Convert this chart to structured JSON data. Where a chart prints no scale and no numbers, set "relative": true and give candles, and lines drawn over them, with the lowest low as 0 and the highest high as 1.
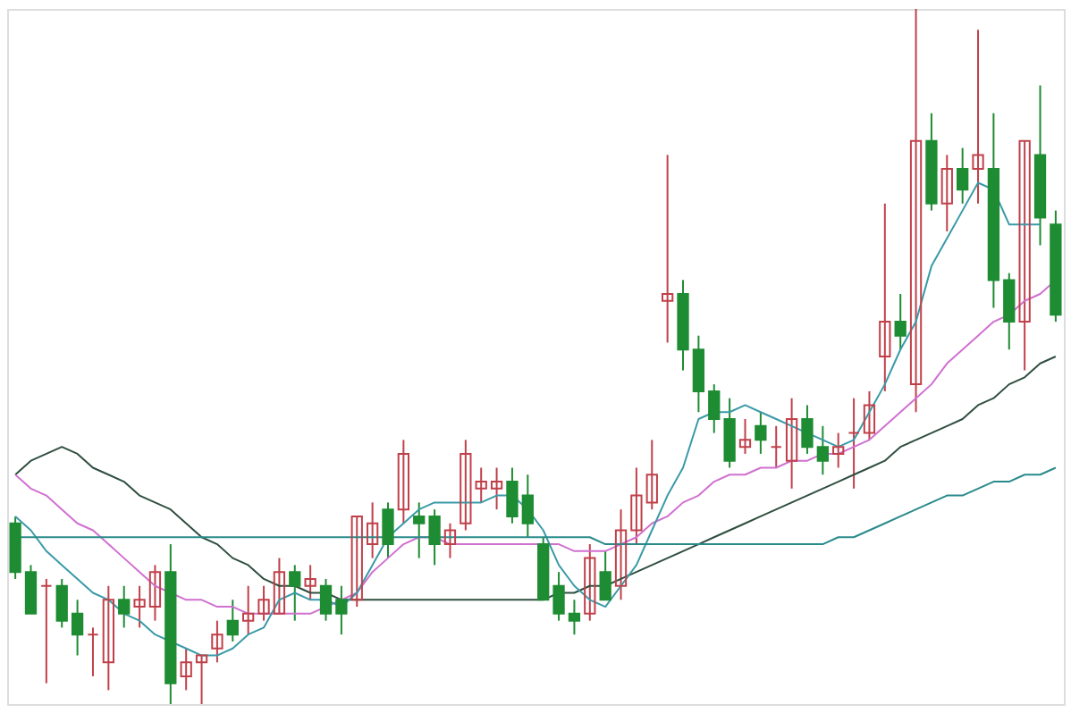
{
  "chart_data": {
    "type": "candlestick",
    "relative": true,
    "categories": [
      null,
      null,
      null,
      null,
      null,
      null,
      null,
      null,
      null,
      null,
      null,
      null,
      null,
      null,
      null,
      null,
      null,
      null,
      null,
      null,
      null,
      null,
      null,
      null,
      null,
      null,
      null,
      null,
      null,
      null,
      null,
      null,
      null,
      null,
      null,
      null,
      null,
      null,
      null,
      null,
      null,
      null,
      null,
      null,
      null,
      null,
      null,
      null,
      null,
      null,
      null,
      null,
      null,
      null,
      null,
      null,
      null,
      null,
      null,
      null,
      null,
      null,
      null,
      null,
      null,
      null,
      null,
      null
    ],
    "ohlc": [
      [
        0.26,
        0.27,
        0.18,
        0.19
      ],
      [
        0.19,
        0.2,
        0.13,
        0.13
      ],
      [
        0.17,
        0.18,
        0.03,
        0.17
      ],
      [
        0.17,
        0.18,
        0.11,
        0.12
      ],
      [
        0.13,
        0.15,
        0.07,
        0.1
      ],
      [
        0.1,
        0.11,
        0.04,
        0.1
      ],
      [
        0.06,
        0.17,
        0.02,
        0.15
      ],
      [
        0.15,
        0.17,
        0.11,
        0.13
      ],
      [
        0.14,
        0.17,
        0.11,
        0.15
      ],
      [
        0.14,
        0.2,
        0.12,
        0.19
      ],
      [
        0.19,
        0.23,
        0,
        0.03
      ],
      [
        0.04,
        0.08,
        0.02,
        0.06
      ],
      [
        0.06,
        0.07,
        0,
        0.07
      ],
      [
        0.08,
        0.12,
        0.06,
        0.1
      ],
      [
        0.12,
        0.15,
        0.09,
        0.1
      ],
      [
        0.12,
        0.17,
        0.1,
        0.13
      ],
      [
        0.13,
        0.17,
        0.12,
        0.15
      ],
      [
        0.13,
        0.21,
        0.13,
        0.19
      ],
      [
        0.19,
        0.2,
        0.12,
        0.17
      ],
      [
        0.17,
        0.2,
        0.15,
        0.18
      ],
      [
        0.17,
        0.18,
        0.12,
        0.13
      ],
      [
        0.15,
        0.17,
        0.1,
        0.13
      ],
      [
        0.15,
        0.27,
        0.14,
        0.27
      ],
      [
        0.23,
        0.29,
        0.21,
        0.26
      ],
      [
        0.28,
        0.29,
        0.21,
        0.23
      ],
      [
        0.28,
        0.38,
        0.26,
        0.36
      ],
      [
        0.27,
        0.29,
        0.21,
        0.26
      ],
      [
        0.27,
        0.28,
        0.2,
        0.23
      ],
      [
        0.23,
        0.26,
        0.21,
        0.25
      ],
      [
        0.26,
        0.38,
        0.25,
        0.36
      ],
      [
        0.31,
        0.34,
        0.29,
        0.32
      ],
      [
        0.31,
        0.34,
        0.28,
        0.32
      ],
      [
        0.32,
        0.34,
        0.26,
        0.27
      ],
      [
        0.3,
        0.33,
        0.24,
        0.26
      ],
      [
        0.23,
        0.24,
        0.15,
        0.15
      ],
      [
        0.17,
        0.19,
        0.12,
        0.13
      ],
      [
        0.13,
        0.15,
        0.1,
        0.12
      ],
      [
        0.13,
        0.23,
        0.12,
        0.21
      ],
      [
        0.19,
        0.22,
        0.15,
        0.15
      ],
      [
        0.17,
        0.28,
        0.15,
        0.25
      ],
      [
        0.25,
        0.34,
        0.23,
        0.3
      ],
      [
        0.29,
        0.38,
        0.28,
        0.33
      ],
      [
        0.58,
        0.79,
        0.52,
        0.59
      ],
      [
        0.59,
        0.61,
        0.48,
        0.51
      ],
      [
        0.51,
        0.53,
        0.42,
        0.45
      ],
      [
        0.45,
        0.46,
        0.39,
        0.41
      ],
      [
        0.41,
        0.44,
        0.34,
        0.35
      ],
      [
        0.37,
        0.41,
        0.36,
        0.38
      ],
      [
        0.4,
        0.42,
        0.36,
        0.38
      ],
      [
        0.37,
        0.4,
        0.34,
        0.37
      ],
      [
        0.35,
        0.44,
        0.31,
        0.41
      ],
      [
        0.41,
        0.43,
        0.36,
        0.37
      ],
      [
        0.37,
        0.4,
        0.33,
        0.35
      ],
      [
        0.36,
        0.39,
        0.34,
        0.37
      ],
      [
        0.39,
        0.44,
        0.31,
        0.39
      ],
      [
        0.39,
        0.45,
        0.38,
        0.43
      ],
      [
        0.5,
        0.72,
        0.45,
        0.55
      ],
      [
        0.55,
        0.59,
        0.51,
        0.53
      ],
      [
        0.46,
        1,
        0.42,
        0.81
      ],
      [
        0.81,
        0.85,
        0.71,
        0.72
      ],
      [
        0.72,
        0.79,
        0.68,
        0.77
      ],
      [
        0.77,
        0.8,
        0.72,
        0.74
      ],
      [
        0.77,
        0.97,
        0.72,
        0.79
      ],
      [
        0.77,
        0.85,
        0.57,
        0.61
      ],
      [
        0.61,
        0.62,
        0.51,
        0.55
      ],
      [
        0.55,
        0.81,
        0.48,
        0.81
      ],
      [
        0.79,
        0.89,
        0.66,
        0.7
      ],
      [
        0.69,
        0.71,
        0.55,
        0.56
      ]
    ],
    "colors": [
      "#1e8c32",
      "#1e8c32",
      "#c0404a",
      "#1e8c32",
      "#1e8c32",
      "#c0404a",
      "#c0404a",
      "#1e8c32",
      "#c0404a",
      "#c0404a",
      "#1e8c32",
      "#c0404a",
      "#c0404a",
      "#c0404a",
      "#1e8c32",
      "#c0404a",
      "#c0404a",
      "#c0404a",
      "#1e8c32",
      "#c0404a",
      "#1e8c32",
      "#1e8c32",
      "#c0404a",
      "#c0404a",
      "#1e8c32",
      "#c0404a",
      "#1e8c32",
      "#1e8c32",
      "#c0404a",
      "#c0404a",
      "#c0404a",
      "#c0404a",
      "#1e8c32",
      "#1e8c32",
      "#1e8c32",
      "#1e8c32",
      "#1e8c32",
      "#c0404a",
      "#1e8c32",
      "#c0404a",
      "#c0404a",
      "#c0404a",
      "#c0404a",
      "#1e8c32",
      "#1e8c32",
      "#1e8c32",
      "#1e8c32",
      "#c0404a",
      "#1e8c32",
      "#c0404a",
      "#c0404a",
      "#1e8c32",
      "#1e8c32",
      "#c0404a",
      "#c0404a",
      "#c0404a",
      "#c0404a",
      "#1e8c32",
      "#c0404a",
      "#1e8c32",
      "#c0404a",
      "#1e8c32",
      "#c0404a",
      "#1e8c32",
      "#1e8c32",
      "#c0404a",
      "#1e8c32",
      "#1e8c32"
    ],
    "series": [
      {
        "type": "line",
        "color": "#2f4f3f",
        "values": [
          0.33,
          0.35,
          0.36,
          0.37,
          0.36,
          0.34,
          0.33,
          0.32,
          0.3,
          0.29,
          0.28,
          0.26,
          0.24,
          0.23,
          0.21,
          0.2,
          0.18,
          0.17,
          0.17,
          0.16,
          0.16,
          0.15,
          0.15,
          0.15,
          0.15,
          0.15,
          0.15,
          0.15,
          0.15,
          0.15,
          0.15,
          0.15,
          0.15,
          0.15,
          0.15,
          0.16,
          0.16,
          0.17,
          0.17,
          0.18,
          0.19,
          0.2,
          0.21,
          0.22,
          0.23,
          0.24,
          0.25,
          0.26,
          0.27,
          0.28,
          0.29,
          0.3,
          0.31,
          0.32,
          0.33,
          0.34,
          0.35,
          0.37,
          0.38,
          0.39,
          0.4,
          0.41,
          0.43,
          0.44,
          0.46,
          0.47,
          0.49,
          0.5
        ]
      },
      {
        "type": "line",
        "color": "#d070d0",
        "values": [
          0.33,
          0.31,
          0.3,
          0.28,
          0.26,
          0.25,
          0.23,
          0.21,
          0.19,
          0.17,
          0.16,
          0.15,
          0.15,
          0.14,
          0.14,
          0.13,
          0.13,
          0.13,
          0.13,
          0.13,
          0.14,
          0.15,
          0.16,
          0.19,
          0.21,
          0.23,
          0.24,
          0.24,
          0.23,
          0.23,
          0.23,
          0.23,
          0.23,
          0.23,
          0.23,
          0.23,
          0.22,
          0.22,
          0.22,
          0.23,
          0.24,
          0.26,
          0.27,
          0.29,
          0.3,
          0.32,
          0.33,
          0.33,
          0.34,
          0.34,
          0.35,
          0.35,
          0.36,
          0.36,
          0.37,
          0.38,
          0.4,
          0.42,
          0.44,
          0.46,
          0.49,
          0.51,
          0.53,
          0.55,
          0.56,
          0.58,
          0.59,
          0.61
        ]
      },
      {
        "type": "line",
        "color": "#3a9aa8",
        "values": [
          0.27,
          0.25,
          0.22,
          0.2,
          0.18,
          0.16,
          0.15,
          0.13,
          0.12,
          0.1,
          0.09,
          0.08,
          0.07,
          0.07,
          0.08,
          0.1,
          0.11,
          0.15,
          0.16,
          0.15,
          0.15,
          0.14,
          0.16,
          0.2,
          0.24,
          0.26,
          0.28,
          0.29,
          0.29,
          0.29,
          0.29,
          0.3,
          0.3,
          0.28,
          0.25,
          0.2,
          0.17,
          0.15,
          0.14,
          0.17,
          0.2,
          0.25,
          0.3,
          0.34,
          0.41,
          0.42,
          0.42,
          0.43,
          0.42,
          0.41,
          0.4,
          0.39,
          0.38,
          0.37,
          0.38,
          0.42,
          0.46,
          0.51,
          0.55,
          0.63,
          0.67,
          0.71,
          0.75,
          0.74,
          0.69,
          0.69,
          0.69,
          null
        ]
      },
      {
        "type": "line",
        "color": "#2a8a8a",
        "values": [
          0.24,
          0.24,
          0.24,
          0.24,
          0.24,
          0.24,
          0.24,
          0.24,
          0.24,
          0.24,
          0.24,
          0.24,
          0.24,
          0.24,
          0.24,
          0.24,
          0.24,
          0.24,
          0.24,
          0.24,
          0.24,
          0.24,
          0.24,
          0.24,
          0.24,
          0.24,
          0.24,
          0.24,
          0.24,
          0.24,
          0.24,
          0.24,
          0.24,
          0.24,
          0.24,
          0.24,
          0.24,
          0.24,
          0.23,
          0.23,
          0.23,
          0.23,
          0.23,
          0.23,
          0.23,
          0.23,
          0.23,
          0.23,
          0.23,
          0.23,
          0.23,
          0.23,
          0.23,
          0.24,
          0.24,
          0.25,
          0.26,
          0.27,
          0.28,
          0.29,
          0.3,
          0.3,
          0.31,
          0.32,
          0.32,
          0.33,
          0.33,
          0.34
        ]
      }
    ]
  }
}
